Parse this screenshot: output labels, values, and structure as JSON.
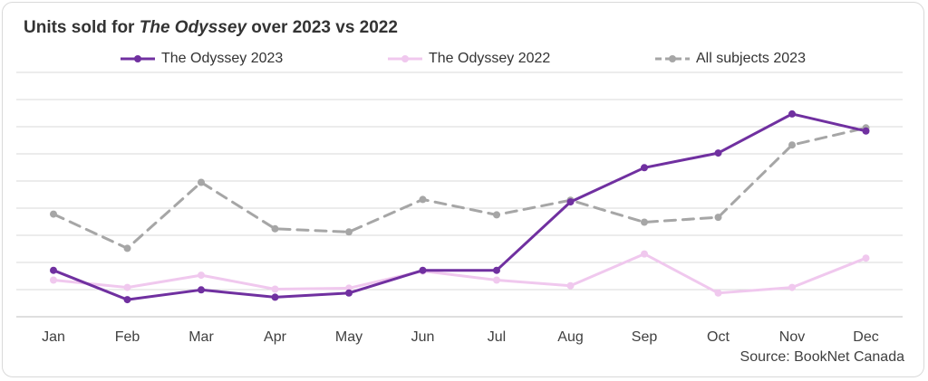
{
  "title": {
    "prefix": "Units sold for ",
    "italic": "The Odyssey",
    "suffix": " over 2023 vs 2022"
  },
  "source": "Source: BookNet Canada",
  "chart_data": {
    "type": "line",
    "categories": [
      "Jan",
      "Feb",
      "Mar",
      "Apr",
      "May",
      "Jun",
      "Jul",
      "Aug",
      "Sep",
      "Oct",
      "Nov",
      "Dec"
    ],
    "ylim": [
      0,
      10
    ],
    "grid": true,
    "y_tick_labels_shown": false,
    "legend_placement": "top",
    "series": [
      {
        "name": "The Odyssey 2023",
        "color": "#7030A0",
        "dash": "solid",
        "values": [
          1.9,
          0.7,
          1.1,
          0.8,
          0.97,
          1.9,
          1.9,
          4.7,
          6.1,
          6.7,
          8.3,
          7.6
        ]
      },
      {
        "name": "The Odyssey 2022",
        "color": "#F0C8EE",
        "dash": "solid",
        "values": [
          1.5,
          1.2,
          1.7,
          1.13,
          1.17,
          1.87,
          1.5,
          1.27,
          2.57,
          0.97,
          1.2,
          2.4
        ]
      },
      {
        "name": "All subjects 2023",
        "color": "#A6A6A6",
        "dash": "dashed",
        "values": [
          4.2,
          2.8,
          5.5,
          3.6,
          3.47,
          4.8,
          4.17,
          4.77,
          3.87,
          4.07,
          7.03,
          7.73
        ]
      }
    ]
  }
}
